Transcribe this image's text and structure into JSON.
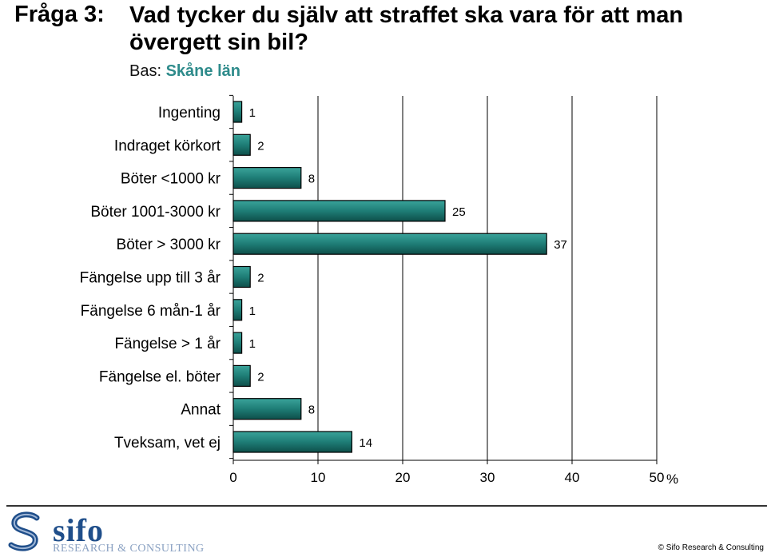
{
  "header": {
    "question_label": "Fråga 3:",
    "question_text": "Vad tycker du själv att straffet ska vara för att man övergett sin bil?",
    "base_label": "Bas:",
    "base_value": "Skåne län"
  },
  "chart_data": {
    "type": "bar",
    "orientation": "horizontal",
    "categories": [
      "Ingenting",
      "Indraget körkort",
      "Böter <1000 kr",
      "Böter 1001-3000 kr",
      "Böter > 3000 kr",
      "Fängelse upp till 3 år",
      "Fängelse 6 mån-1 år",
      "Fängelse > 1 år",
      "Fängelse el. böter",
      "Annat",
      "Tveksam, vet ej"
    ],
    "values": [
      1,
      2,
      8,
      25,
      37,
      2,
      1,
      1,
      2,
      8,
      14
    ],
    "data_labels": [
      "1",
      "2",
      "8",
      "25",
      "37",
      "2",
      "1",
      "1",
      "2",
      "8",
      "14"
    ],
    "xlim": [
      0,
      50
    ],
    "xticks": [
      0,
      10,
      20,
      30,
      40,
      50
    ],
    "xtick_labels": [
      "0",
      "10",
      "20",
      "30",
      "40",
      "50"
    ],
    "x_unit": "%",
    "grid": true,
    "bar_color": "#1e7d76"
  },
  "footer": {
    "logo_word": "sifo",
    "logo_sub": "RESEARCH & CONSULTING",
    "copyright": "© Sifo Research & Consulting"
  }
}
